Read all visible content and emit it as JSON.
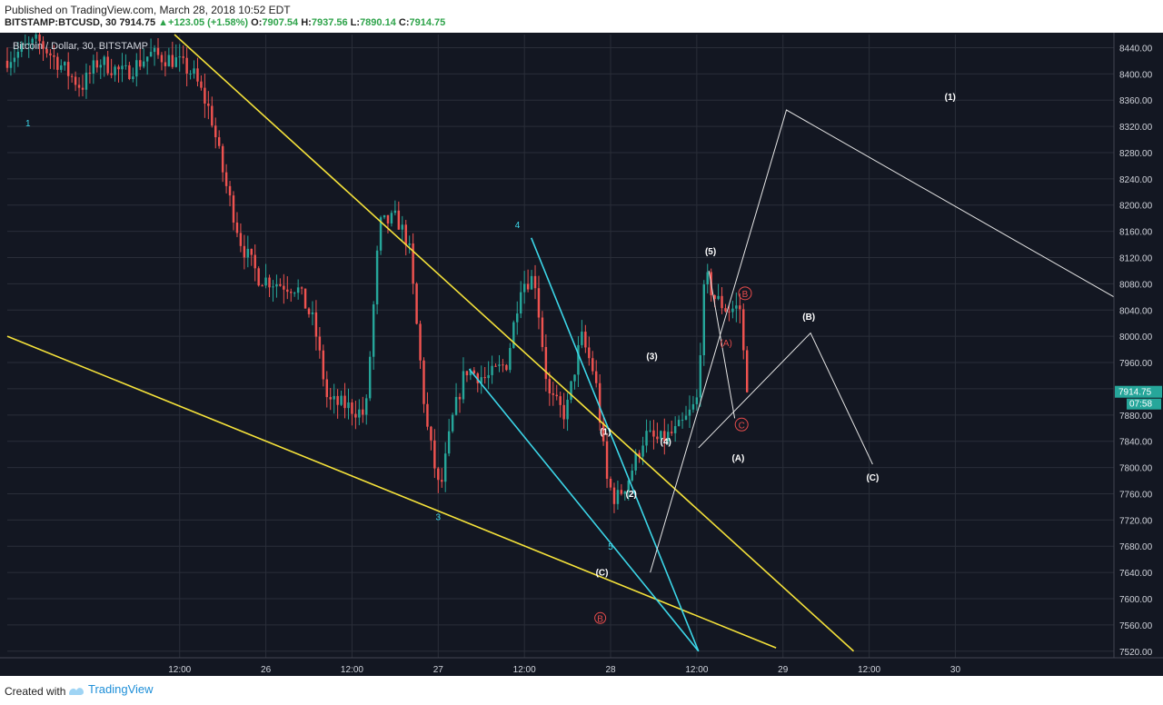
{
  "header": {
    "published": "Published on TradingView.com, March 28, 2018 10:52 EDT",
    "symbol": "BITSTAMP:BTCUSD, 30",
    "last": "7914.75",
    "change_arrow": "▲",
    "change": "+123.05 (+1.58%)",
    "o_label": "O:",
    "o": "7907.54",
    "h_label": "H:",
    "h": "7937.56",
    "l_label": "L:",
    "l": "7890.14",
    "c_label": "C:",
    "c": "7914.75"
  },
  "chart_title": "Bitcoin / Dollar, 30, BITSTAMP",
  "footer": {
    "created_with": "Created with",
    "brand": "TradingView"
  },
  "colors": {
    "background": "#131722",
    "grid": "#2a2e39",
    "up": "#26a69a",
    "down": "#ef5350",
    "trendline_yellow": "#f5e23a",
    "trendline_cyan": "#3cd6e8",
    "projection": "#e6e6e6",
    "wave_cyan": "#3cd6e8",
    "wave_white": "#ffffff",
    "wave_red": "#e74c4c",
    "price_tag": "#26a69a"
  },
  "chart_data": {
    "type": "candlestick",
    "x_unit": "days (24 = March 24 00:00)",
    "y_range": [
      7510,
      8460
    ],
    "x_range": [
      24.5,
      30.92
    ],
    "y_ticks": [
      8440,
      8400,
      8360,
      8320,
      8280,
      8240,
      8200,
      8160,
      8120,
      8080,
      8040,
      8000,
      7960,
      7920,
      7880,
      7840,
      7800,
      7760,
      7720,
      7680,
      7640,
      7600,
      7560,
      7520
    ],
    "x_ticks": [
      {
        "t": 25.5,
        "label": "12:00"
      },
      {
        "t": 26.0,
        "label": "26"
      },
      {
        "t": 26.5,
        "label": "12:00"
      },
      {
        "t": 27.0,
        "label": "27"
      },
      {
        "t": 27.5,
        "label": "12:00"
      },
      {
        "t": 28.0,
        "label": "28"
      },
      {
        "t": 28.5,
        "label": "12:00"
      },
      {
        "t": 29.0,
        "label": "29"
      },
      {
        "t": 29.5,
        "label": "12:00"
      },
      {
        "t": 30.0,
        "label": "30"
      }
    ],
    "price_tag": {
      "price": 7914.75,
      "label": "7914.75",
      "countdown": "07:58"
    },
    "candles_path": [
      [
        24.5,
        8420
      ],
      [
        24.7,
        8450
      ],
      [
        24.95,
        8380
      ],
      [
        25.05,
        8420
      ],
      [
        25.2,
        8400
      ],
      [
        25.35,
        8430
      ],
      [
        25.5,
        8420
      ],
      [
        25.6,
        8400
      ],
      [
        25.7,
        8340
      ],
      [
        25.78,
        8240
      ],
      [
        25.88,
        8140
      ],
      [
        25.98,
        8090
      ],
      [
        26.1,
        8080
      ],
      [
        26.2,
        8075
      ],
      [
        26.3,
        8020
      ],
      [
        26.38,
        7900
      ],
      [
        26.48,
        7895
      ],
      [
        26.6,
        7880
      ],
      [
        26.68,
        8170
      ],
      [
        26.78,
        8180
      ],
      [
        26.85,
        8140
      ],
      [
        26.95,
        7870
      ],
      [
        27.03,
        7760
      ],
      [
        27.1,
        7870
      ],
      [
        27.18,
        7950
      ],
      [
        27.3,
        7935
      ],
      [
        27.42,
        7960
      ],
      [
        27.5,
        8080
      ],
      [
        27.58,
        8090
      ],
      [
        27.66,
        7910
      ],
      [
        27.76,
        7880
      ],
      [
        27.85,
        8000
      ],
      [
        27.93,
        7940
      ],
      [
        28.0,
        7780
      ],
      [
        28.05,
        7750
      ],
      [
        28.12,
        7780
      ],
      [
        28.22,
        7850
      ],
      [
        28.3,
        7840
      ],
      [
        28.4,
        7855
      ],
      [
        28.45,
        7870
      ],
      [
        28.52,
        7900
      ],
      [
        28.57,
        8095
      ],
      [
        28.62,
        8060
      ],
      [
        28.7,
        8040
      ],
      [
        28.77,
        8045
      ],
      [
        28.81,
        7915
      ]
    ],
    "yellow_lines": [
      {
        "from": [
          24.5,
          8000
        ],
        "to": [
          28.96,
          7525
        ]
      },
      {
        "from": [
          25.47,
          8460
        ],
        "to": [
          29.41,
          7520
        ]
      }
    ],
    "cyan_lines": [
      {
        "from": [
          27.54,
          8150
        ],
        "to": [
          28.51,
          7520
        ]
      },
      {
        "from": [
          27.18,
          7950
        ],
        "to": [
          28.51,
          7520
        ]
      }
    ],
    "projections": [
      {
        "points": [
          [
            28.23,
            7640
          ],
          [
            29.02,
            8345
          ],
          [
            30.92,
            8060
          ]
        ]
      },
      {
        "points": [
          [
            28.51,
            7830
          ],
          [
            29.16,
            8005
          ],
          [
            29.52,
            7805
          ]
        ]
      },
      {
        "points": [
          [
            28.57,
            8100
          ],
          [
            28.72,
            7875
          ]
        ]
      }
    ],
    "waves": [
      {
        "label": "1",
        "t": 24.62,
        "p": 8320,
        "style": "cyan"
      },
      {
        "label": "4",
        "t": 27.46,
        "p": 8165,
        "style": "cyan"
      },
      {
        "label": "3",
        "t": 27.0,
        "p": 7720,
        "style": "cyan"
      },
      {
        "label": "5",
        "t": 28.0,
        "p": 7675,
        "style": "cyan"
      },
      {
        "label": "(1)",
        "t": 27.97,
        "p": 7850,
        "style": "white"
      },
      {
        "label": "(2)",
        "t": 28.12,
        "p": 7755,
        "style": "white"
      },
      {
        "label": "(3)",
        "t": 28.24,
        "p": 7965,
        "style": "white"
      },
      {
        "label": "(4)",
        "t": 28.32,
        "p": 7835,
        "style": "white"
      },
      {
        "label": "(5)",
        "t": 28.58,
        "p": 8125,
        "style": "white"
      },
      {
        "label": "(A)",
        "t": 28.74,
        "p": 7810,
        "style": "white"
      },
      {
        "label": "(B)",
        "t": 29.15,
        "p": 8025,
        "style": "white"
      },
      {
        "label": "(C)",
        "t": 29.52,
        "p": 7780,
        "style": "white"
      },
      {
        "label": "(C)",
        "t": 27.95,
        "p": 7635,
        "style": "white"
      },
      {
        "label": "(1)",
        "t": 29.97,
        "p": 8360,
        "style": "white"
      },
      {
        "label": "(A)",
        "t": 28.67,
        "p": 7985,
        "style": "red"
      },
      {
        "label": "(B)",
        "t": 28.78,
        "p": 8060,
        "style": "red-circle"
      },
      {
        "label": "(C)",
        "t": 28.76,
        "p": 7860,
        "style": "red-circle"
      },
      {
        "label": "B",
        "t": 27.94,
        "p": 7565,
        "style": "red-circle"
      }
    ]
  }
}
